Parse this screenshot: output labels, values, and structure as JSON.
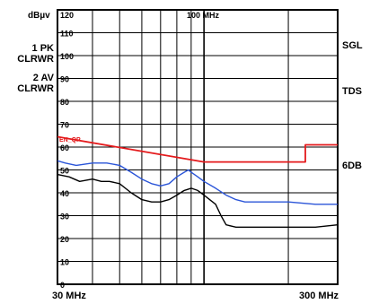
{
  "instrument": {
    "unit_label": "dBµv",
    "trace1_label": "1 PK",
    "trace1_mode": "CLRWR",
    "trace2_label": "2 AV",
    "trace2_mode": "CLRWR",
    "right_annotations": [
      "SGL",
      "TDS",
      "6DB"
    ],
    "limit_line_label": "EN_QP"
  },
  "chart_data": {
    "type": "line",
    "x_scale": "log",
    "xlim_mhz": [
      30,
      300
    ],
    "ylim": [
      0,
      120
    ],
    "y_ticks": [
      0,
      10,
      20,
      30,
      40,
      50,
      60,
      70,
      80,
      90,
      100,
      110,
      120
    ],
    "x_tick_labels": [
      "30 MHz",
      "100 MHz",
      "300 MHz"
    ],
    "grid": true,
    "colors": {
      "limit": "#e41a1c",
      "peak": "#2b55d8",
      "average": "#000000"
    },
    "series": [
      {
        "key": "limit",
        "x": [
          30,
          100,
          230,
          230,
          300
        ],
        "values": [
          64.5,
          53.5,
          53.5,
          61,
          61
        ]
      },
      {
        "key": "peak",
        "x": [
          30,
          32,
          35,
          40,
          45,
          50,
          55,
          60,
          65,
          70,
          75,
          80,
          85,
          88,
          90,
          95,
          100,
          110,
          120,
          130,
          140,
          160,
          200,
          250,
          300
        ],
        "values": [
          54,
          53,
          52,
          53,
          53,
          52,
          49,
          46,
          44,
          43,
          44,
          47,
          49,
          50,
          49,
          47,
          45,
          42,
          39,
          37,
          36,
          36,
          36,
          35,
          35
        ]
      },
      {
        "key": "average",
        "x": [
          30,
          33,
          36,
          40,
          43,
          46,
          50,
          55,
          60,
          65,
          70,
          75,
          80,
          85,
          90,
          95,
          100,
          110,
          115,
          120,
          130,
          150,
          200,
          250,
          300
        ],
        "values": [
          48,
          47,
          45,
          46,
          45,
          45,
          44,
          40,
          37,
          36,
          36,
          37,
          39,
          41,
          42,
          41,
          39,
          35,
          30,
          26,
          25,
          25,
          25,
          25,
          26
        ]
      }
    ]
  }
}
